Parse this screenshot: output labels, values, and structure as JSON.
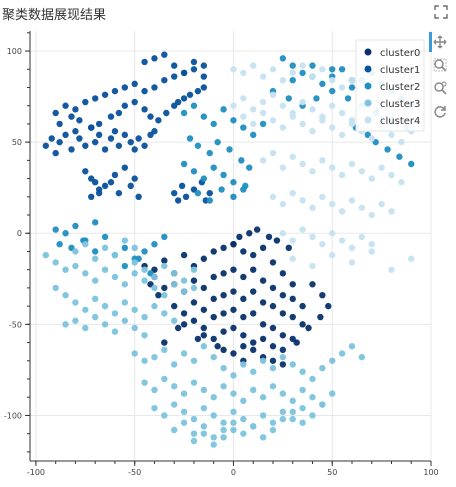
{
  "header": {
    "title": "聚类数据展现结果",
    "fullscreen_icon": "fullscreen-icon"
  },
  "toolbar": {
    "tools": [
      {
        "name": "pan-tool",
        "icon": "move-icon"
      },
      {
        "name": "box-zoom-tool",
        "icon": "box-zoom-icon"
      },
      {
        "name": "wheel-zoom-tool",
        "icon": "wheel-zoom-icon"
      },
      {
        "name": "reset-tool",
        "icon": "reset-icon"
      }
    ]
  },
  "chart_data": {
    "type": "scatter",
    "title": "",
    "xlabel": "",
    "ylabel": "",
    "xlim": [
      -103,
      100
    ],
    "ylim": [
      -125,
      111
    ],
    "x_ticks": [
      -100,
      -50,
      0,
      50,
      100
    ],
    "y_ticks": [
      100,
      50,
      0,
      -50,
      -100
    ],
    "grid": true,
    "legend_position": "top-right",
    "series": [
      {
        "name": "cluster0",
        "color": "#08306b",
        "x": [
          -45,
          -40,
          -35,
          -30,
          -25,
          -20,
          -15,
          -10,
          -5,
          0,
          5,
          10,
          15,
          20,
          25,
          30,
          -35,
          -30,
          -25,
          -20,
          -15,
          -10,
          -5,
          0,
          5,
          10,
          15,
          20,
          25,
          30,
          35,
          -30,
          -25,
          -20,
          -15,
          -10,
          -5,
          0,
          5,
          10,
          15,
          20,
          25,
          30,
          35,
          -25,
          -20,
          -15,
          -10,
          -5,
          0,
          5,
          10,
          15,
          20,
          25,
          30,
          -15,
          -10,
          -5,
          0,
          5,
          10,
          15,
          20,
          25,
          -5,
          0,
          5,
          10,
          15,
          20,
          25,
          -35,
          -40,
          -42,
          -38,
          0,
          3,
          8,
          12,
          18,
          22,
          28,
          40,
          45,
          48,
          44,
          38,
          32,
          5,
          -8,
          -18,
          -28
        ],
        "y": [
          -18,
          -20,
          -15,
          -22,
          -12,
          -18,
          -14,
          -10,
          -8,
          -6,
          -10,
          -12,
          -8,
          -16,
          -22,
          -28,
          -30,
          -28,
          -32,
          -26,
          -30,
          -24,
          -22,
          -20,
          -24,
          -20,
          -26,
          -30,
          -34,
          -36,
          -40,
          -40,
          -44,
          -38,
          -42,
          -36,
          -34,
          -32,
          -36,
          -32,
          -38,
          -40,
          -44,
          -46,
          -50,
          -50,
          -48,
          -52,
          -46,
          -44,
          -42,
          -46,
          -44,
          -50,
          -52,
          -56,
          -58,
          -56,
          -58,
          -54,
          -52,
          -56,
          -60,
          -58,
          -62,
          -64,
          -64,
          -66,
          -62,
          -64,
          -68,
          -70,
          -72,
          -60,
          -24,
          -28,
          -34,
          -6,
          -2,
          0,
          2,
          -2,
          -4,
          -8,
          -28,
          -34,
          -40,
          -46,
          -52,
          -60,
          -70,
          -62,
          -58,
          -52
        ]
      },
      {
        "name": "cluster1",
        "color": "#08519c",
        "x": [
          -95,
          -92,
          -90,
          -88,
          -85,
          -82,
          -80,
          -78,
          -75,
          -72,
          -70,
          -68,
          -65,
          -62,
          -60,
          -58,
          -55,
          -52,
          -50,
          -48,
          -45,
          -42,
          -40,
          -75,
          -72,
          -70,
          -68,
          -65,
          -60,
          -55,
          -50,
          -72,
          -68,
          -62,
          -58,
          -52,
          -48,
          -90,
          -85,
          -80,
          -75,
          -70,
          -65,
          -60,
          -55,
          -50,
          -45,
          -40,
          -35,
          -30,
          -25,
          -20,
          -15,
          -45,
          -40,
          -35,
          -30,
          -25,
          -20,
          -15,
          -88,
          -82,
          -78,
          -72,
          -68,
          -62,
          -58,
          -55,
          -50,
          -45,
          -42,
          -38,
          -34,
          -30,
          -28,
          -25,
          -22,
          -18,
          -15,
          -30,
          -28,
          -26,
          -24,
          -20,
          -16,
          -14,
          -12
        ],
        "y": [
          48,
          52,
          44,
          50,
          54,
          46,
          56,
          52,
          48,
          58,
          50,
          54,
          46,
          52,
          56,
          48,
          54,
          50,
          46,
          52,
          48,
          54,
          56,
          34,
          30,
          28,
          22,
          26,
          32,
          36,
          30,
          20,
          24,
          28,
          22,
          26,
          20,
          66,
          70,
          68,
          72,
          74,
          76,
          78,
          80,
          82,
          78,
          80,
          84,
          86,
          88,
          90,
          92,
          94,
          96,
          98,
          92,
          88,
          94,
          86,
          60,
          64,
          62,
          58,
          60,
          64,
          66,
          70,
          72,
          68,
          64,
          62,
          66,
          70,
          72,
          74,
          76,
          78,
          80,
          22,
          18,
          26,
          20,
          24,
          28,
          18,
          22
        ]
      },
      {
        "name": "cluster2",
        "color": "#1f8fc2",
        "x": [
          -25,
          -20,
          -15,
          -10,
          -5,
          0,
          5,
          10,
          15,
          -22,
          -18,
          -12,
          -8,
          -2,
          4,
          8,
          -25,
          -20,
          -15,
          -10,
          -5,
          0,
          5,
          -18,
          -12,
          -6,
          0,
          6,
          -90,
          -85,
          -80,
          -75,
          -70,
          -65,
          -88,
          -82,
          -76,
          -70,
          -60,
          -55,
          -50,
          -45,
          -40,
          -35,
          -55,
          -48,
          -42,
          30,
          35,
          40,
          45,
          50,
          55,
          60,
          65,
          70,
          75,
          80,
          85,
          90,
          20,
          28,
          35,
          42,
          50,
          58,
          65,
          72,
          80,
          88,
          62,
          68,
          72,
          78,
          84,
          90,
          25,
          30,
          40,
          50,
          60
        ],
        "y": [
          66,
          70,
          64,
          60,
          68,
          62,
          58,
          54,
          60,
          52,
          48,
          44,
          50,
          46,
          40,
          36,
          38,
          34,
          30,
          36,
          32,
          28,
          24,
          22,
          18,
          24,
          20,
          26,
          2,
          0,
          4,
          -4,
          6,
          -2,
          -6,
          -8,
          -4,
          -10,
          -12,
          -8,
          -14,
          -10,
          -6,
          -2,
          -18,
          -14,
          -22,
          84,
          88,
          92,
          82,
          86,
          90,
          80,
          84,
          88,
          82,
          78,
          74,
          70,
          78,
          74,
          70,
          74,
          78,
          74,
          70,
          66,
          62,
          58,
          58,
          54,
          50,
          46,
          42,
          38,
          96,
          92,
          86,
          90,
          84
        ]
      },
      {
        "name": "cluster3",
        "color": "#7cc3dd",
        "x": [
          -95,
          -90,
          -85,
          -80,
          -75,
          -70,
          -65,
          -60,
          -55,
          -50,
          -45,
          -40,
          -35,
          -30,
          -25,
          -20,
          -90,
          -85,
          -80,
          -75,
          -70,
          -65,
          -60,
          -55,
          -50,
          -45,
          -40,
          -35,
          -30,
          -85,
          -80,
          -75,
          -70,
          -65,
          -60,
          -55,
          -50,
          -45,
          -80,
          -75,
          -70,
          -65,
          -60,
          -55,
          -50,
          -50,
          -45,
          -40,
          -35,
          -30,
          -25,
          -20,
          -15,
          -10,
          -5,
          0,
          5,
          10,
          15,
          20,
          25,
          30,
          35,
          40,
          45,
          50,
          55,
          60,
          65,
          -45,
          -40,
          -35,
          -30,
          -25,
          -20,
          -15,
          -10,
          -5,
          0,
          5,
          10,
          15,
          20,
          25,
          30,
          35,
          40,
          45,
          50,
          -40,
          -35,
          -30,
          -25,
          -20,
          -15,
          -10,
          -5,
          0,
          5,
          10,
          15,
          20,
          25,
          30,
          35,
          40,
          45,
          -30,
          -25,
          -20,
          -15,
          -10,
          -5,
          0,
          5,
          10,
          15,
          20,
          25,
          30,
          35,
          -20,
          -15,
          -10,
          -5,
          0,
          -50,
          -45,
          -40,
          -35,
          -30,
          -25,
          -20
        ],
        "y": [
          -12,
          -16,
          -20,
          -18,
          -22,
          -26,
          -20,
          -24,
          -28,
          -22,
          -26,
          -30,
          -34,
          -28,
          -32,
          -30,
          -30,
          -34,
          -38,
          -42,
          -36,
          -40,
          -44,
          -38,
          -42,
          -46,
          -40,
          -44,
          -48,
          -50,
          -48,
          -52,
          -46,
          -50,
          -54,
          -48,
          -52,
          -56,
          -10,
          -6,
          -14,
          -8,
          -12,
          -4,
          -8,
          -66,
          -70,
          -68,
          -64,
          -72,
          -66,
          -70,
          -62,
          -68,
          -74,
          -78,
          -72,
          -76,
          -70,
          -74,
          -68,
          -72,
          -76,
          -80,
          -74,
          -70,
          -66,
          -62,
          -68,
          -82,
          -86,
          -80,
          -84,
          -88,
          -82,
          -86,
          -90,
          -84,
          -88,
          -92,
          -86,
          -90,
          -84,
          -88,
          -92,
          -86,
          -90,
          -94,
          -88,
          -96,
          -100,
          -94,
          -98,
          -102,
          -96,
          -100,
          -104,
          -98,
          -102,
          -106,
          -100,
          -104,
          -98,
          -102,
          -96,
          -100,
          -94,
          -108,
          -104,
          -110,
          -106,
          -112,
          -108,
          -104,
          -110,
          -106,
          -112,
          -108,
          -102,
          -98,
          -104,
          -114,
          -110,
          -116,
          -112,
          -108,
          -16,
          -20,
          -24,
          -18,
          -22,
          -26,
          -20
        ]
      },
      {
        "name": "cluster4",
        "color": "#c6e2f0",
        "x": [
          0,
          5,
          10,
          15,
          20,
          25,
          30,
          35,
          40,
          45,
          50,
          55,
          60,
          65,
          70,
          75,
          80,
          85,
          90,
          5,
          10,
          15,
          20,
          25,
          30,
          35,
          40,
          45,
          50,
          55,
          60,
          65,
          70,
          75,
          80,
          85,
          90,
          15,
          20,
          25,
          30,
          35,
          40,
          45,
          50,
          55,
          60,
          65,
          70,
          75,
          80,
          85,
          20,
          25,
          30,
          35,
          40,
          45,
          50,
          55,
          60,
          65,
          70,
          75,
          80,
          25,
          30,
          35,
          40,
          45,
          50,
          55,
          60,
          65,
          70,
          0,
          5,
          10,
          15,
          20,
          25,
          30,
          35,
          40,
          45,
          50,
          55,
          60,
          65,
          70,
          75,
          80,
          85,
          90,
          30,
          40,
          50,
          60,
          70,
          80,
          90
        ],
        "y": [
          90,
          88,
          92,
          86,
          90,
          84,
          88,
          92,
          86,
          90,
          84,
          80,
          84,
          88,
          82,
          86,
          80,
          84,
          88,
          64,
          60,
          66,
          62,
          58,
          64,
          60,
          56,
          62,
          58,
          54,
          60,
          56,
          52,
          58,
          54,
          50,
          56,
          40,
          44,
          36,
          42,
          38,
          34,
          40,
          36,
          32,
          38,
          34,
          30,
          36,
          32,
          28,
          20,
          16,
          22,
          18,
          14,
          20,
          16,
          12,
          18,
          14,
          10,
          16,
          12,
          0,
          -4,
          2,
          -2,
          -6,
          0,
          -4,
          -8,
          -2,
          -6,
          70,
          74,
          68,
          72,
          76,
          70,
          66,
          72,
          68,
          64,
          70,
          66,
          62,
          68,
          64,
          60,
          66,
          62,
          58,
          -14,
          -18,
          -12,
          -16,
          -10,
          -20,
          -14
        ]
      }
    ]
  }
}
